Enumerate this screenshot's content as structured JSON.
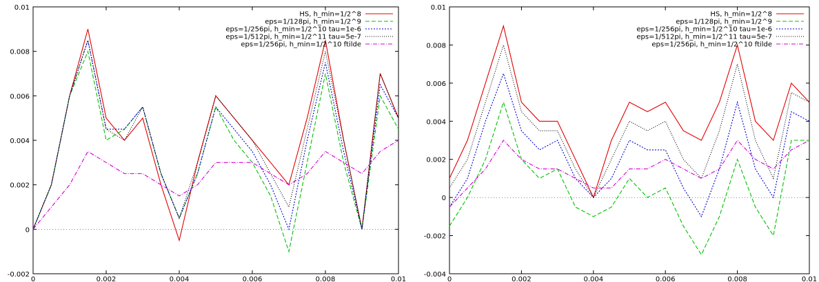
{
  "chart_data": [
    {
      "type": "line",
      "title": "",
      "xlabel": "",
      "ylabel": "",
      "xlim": [
        0,
        0.01
      ],
      "ylim": [
        -0.002,
        0.01
      ],
      "x_ticks": [
        "0",
        "0.002",
        "0.004",
        "0.006",
        "0.008",
        "0.01"
      ],
      "y_ticks": [
        "-0.002",
        "0",
        "0.002",
        "0.004",
        "0.006",
        "0.008",
        "0.01"
      ],
      "grid": false,
      "legend_position": "top-right",
      "x": [
        0,
        0.0005,
        0.001,
        0.0015,
        0.002,
        0.0025,
        0.003,
        0.0035,
        0.004,
        0.0045,
        0.005,
        0.0055,
        0.006,
        0.0065,
        0.007,
        0.0075,
        0.008,
        0.0085,
        0.009,
        0.0095,
        0.01
      ],
      "series": [
        {
          "name": "HS, h_min=1/2^8",
          "color": "#e00000",
          "dash": "solid",
          "values": [
            0.0,
            0.002,
            0.006,
            0.009,
            0.005,
            0.004,
            0.005,
            0.002,
            -0.0005,
            0.003,
            0.006,
            0.005,
            0.004,
            0.003,
            0.002,
            0.005,
            0.0085,
            0.004,
            0.0,
            0.007,
            0.005
          ]
        },
        {
          "name": "eps=1/128pi, h_min=1/2^9",
          "color": "#00c000",
          "dash": "6,3",
          "values": [
            0.0,
            0.002,
            0.006,
            0.008,
            0.004,
            0.0045,
            0.0055,
            0.0025,
            0.0005,
            0.0025,
            0.0055,
            0.004,
            0.003,
            0.0015,
            -0.001,
            0.003,
            0.007,
            0.003,
            0.0,
            0.006,
            0.0045
          ]
        },
        {
          "name": "eps=1/256pi, h_min=1/2^10 tau=1e-6",
          "color": "#0000d0",
          "dash": "2,2",
          "values": [
            0.0,
            0.002,
            0.006,
            0.0085,
            0.0045,
            0.0045,
            0.0055,
            0.0025,
            0.0005,
            0.0025,
            0.0055,
            0.0045,
            0.0035,
            0.002,
            0.0,
            0.004,
            0.0075,
            0.0035,
            0.0,
            0.0065,
            0.005
          ]
        },
        {
          "name": "eps=1/512pi, h_min=1/2^11 tau=5e-7",
          "color": "#000000",
          "dash": "1,2",
          "values": [
            0.0,
            0.002,
            0.006,
            0.0085,
            0.0045,
            0.004,
            0.0055,
            0.0025,
            0.0005,
            0.003,
            0.006,
            0.005,
            0.004,
            0.0025,
            0.001,
            0.0045,
            0.008,
            0.004,
            0.0,
            0.007,
            0.005
          ]
        },
        {
          "name": "eps=1/256pi, h_min=1/2^10 ftilde",
          "color": "#d000d0",
          "dash": "6,2,1,2",
          "values": [
            0.0,
            0.001,
            0.002,
            0.0035,
            0.003,
            0.0025,
            0.0025,
            0.002,
            0.0015,
            0.002,
            0.003,
            0.003,
            0.003,
            0.0025,
            0.002,
            0.0025,
            0.0035,
            0.003,
            0.0025,
            0.0035,
            0.004
          ]
        }
      ]
    },
    {
      "type": "line",
      "title": "",
      "xlabel": "",
      "ylabel": "",
      "xlim": [
        0,
        0.01
      ],
      "ylim": [
        -0.004,
        0.01
      ],
      "x_ticks": [
        "0",
        "0.002",
        "0.004",
        "0.006",
        "0.008",
        "0.01"
      ],
      "y_ticks": [
        "-0.004",
        "-0.002",
        "0",
        "0.002",
        "0.004",
        "0.006",
        "0.008",
        "0.01"
      ],
      "grid": false,
      "legend_position": "top-right",
      "x": [
        0,
        0.0005,
        0.001,
        0.0015,
        0.002,
        0.0025,
        0.003,
        0.0035,
        0.004,
        0.0045,
        0.005,
        0.0055,
        0.006,
        0.0065,
        0.007,
        0.0075,
        0.008,
        0.0085,
        0.009,
        0.0095,
        0.01
      ],
      "series": [
        {
          "name": "HS, h_min=1/2^8",
          "color": "#e00000",
          "dash": "solid",
          "values": [
            0.001,
            0.003,
            0.006,
            0.009,
            0.005,
            0.004,
            0.004,
            0.002,
            0.0,
            0.003,
            0.005,
            0.0045,
            0.005,
            0.0035,
            0.003,
            0.005,
            0.008,
            0.004,
            0.003,
            0.006,
            0.005
          ]
        },
        {
          "name": "eps=1/128pi, h_min=1/2^9",
          "color": "#00c000",
          "dash": "6,3",
          "values": [
            -0.0015,
            0.0,
            0.002,
            0.005,
            0.002,
            0.001,
            0.0015,
            -0.0005,
            -0.001,
            -0.0005,
            0.001,
            0.0,
            0.0005,
            -0.0015,
            -0.003,
            -0.001,
            0.002,
            -0.0005,
            -0.002,
            0.003,
            0.003
          ]
        },
        {
          "name": "eps=1/256pi, h_min=1/2^10 tau=1e-6",
          "color": "#0000d0",
          "dash": "2,2",
          "values": [
            -0.0005,
            0.001,
            0.004,
            0.0065,
            0.0035,
            0.0025,
            0.003,
            0.001,
            0.0,
            0.001,
            0.003,
            0.0025,
            0.0025,
            0.0005,
            -0.001,
            0.0015,
            0.005,
            0.0015,
            0.0,
            0.0045,
            0.004
          ]
        },
        {
          "name": "eps=1/512pi, h_min=1/2^11 tau=5e-7",
          "color": "#000000",
          "dash": "1,2",
          "values": [
            0.0005,
            0.002,
            0.005,
            0.008,
            0.0045,
            0.0035,
            0.0035,
            0.0015,
            0.0,
            0.002,
            0.004,
            0.0035,
            0.004,
            0.002,
            0.001,
            0.0035,
            0.007,
            0.003,
            0.001,
            0.0055,
            0.005
          ]
        },
        {
          "name": "eps=1/256pi, h_min=1/2^10 ftilde",
          "color": "#d000d0",
          "dash": "6,2,1,2",
          "values": [
            -0.0005,
            0.0005,
            0.0015,
            0.003,
            0.002,
            0.0015,
            0.0015,
            0.001,
            0.0005,
            0.0005,
            0.0015,
            0.0015,
            0.002,
            0.0015,
            0.001,
            0.0015,
            0.003,
            0.002,
            0.0015,
            0.0025,
            0.003
          ]
        }
      ]
    }
  ]
}
